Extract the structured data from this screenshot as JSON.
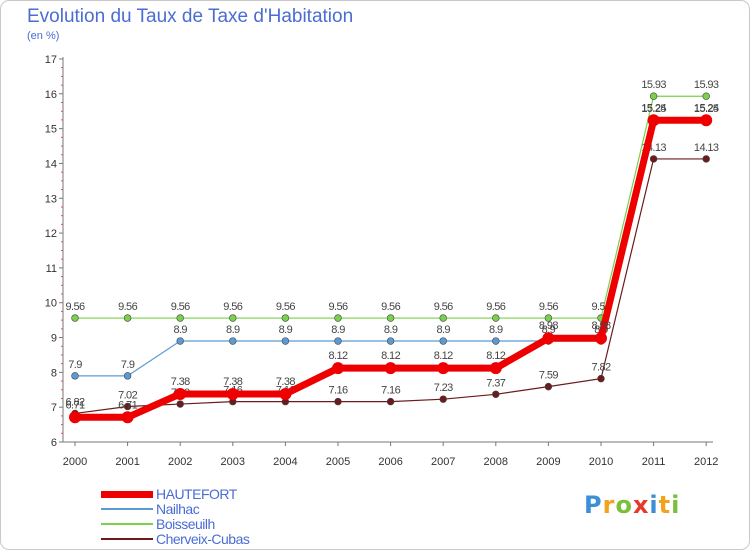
{
  "chart_data": {
    "type": "line",
    "title": "Evolution du Taux de Taxe d'Habitation",
    "subtitle": "(en %)",
    "xlabel": "",
    "ylabel": "",
    "categories": [
      "2000",
      "2001",
      "2002",
      "2003",
      "2004",
      "2005",
      "2006",
      "2007",
      "2008",
      "2009",
      "2010",
      "2011",
      "2012"
    ],
    "ylim": [
      6,
      17
    ],
    "yticks": [
      "6",
      "7",
      "8",
      "9",
      "10",
      "11",
      "12",
      "13",
      "14",
      "15",
      "16",
      "17"
    ],
    "grid": false,
    "legend_position": "bottom-left",
    "series": [
      {
        "name": "Boisseuilh",
        "color": "#7ad14a",
        "values": [
          9.56,
          9.56,
          9.56,
          9.56,
          9.56,
          9.56,
          9.56,
          9.56,
          9.56,
          9.56,
          9.56,
          15.93,
          15.93
        ],
        "labels": [
          "9.56",
          "9.56",
          "9.56",
          "9.56",
          "9.56",
          "9.56",
          "9.56",
          "9.56",
          "9.56",
          "9.56",
          "9.56",
          "15.93",
          "15.93"
        ]
      },
      {
        "name": "Nailhac",
        "color": "#5b9bd5",
        "values": [
          7.9,
          7.9,
          8.9,
          8.9,
          8.9,
          8.9,
          8.9,
          8.9,
          8.9,
          8.9,
          8.9,
          15.25,
          15.25
        ],
        "labels": [
          "7.9",
          "7.9",
          "8.9",
          "8.9",
          "8.9",
          "8.9",
          "8.9",
          "8.9",
          "8.9",
          "8.9",
          "8.9",
          "15.25",
          "15.25"
        ]
      },
      {
        "name": "Cherveix-Cubas",
        "color": "#6b1b1b",
        "values": [
          6.82,
          7.02,
          7.09,
          7.16,
          7.16,
          7.16,
          7.16,
          7.23,
          7.37,
          7.59,
          7.82,
          14.13,
          14.13
        ],
        "labels": [
          "6.82",
          "7.02",
          "7.09",
          "7.16",
          "7.16",
          "7.16",
          "7.16",
          "7.23",
          "7.37",
          "7.59",
          "7.82",
          "14.13",
          "14.13"
        ]
      },
      {
        "name": "HAUTEFORT",
        "color": "#ee0000",
        "values": [
          6.71,
          6.71,
          7.38,
          7.38,
          7.38,
          8.12,
          8.12,
          8.12,
          8.12,
          8.98,
          8.98,
          15.24,
          15.24
        ],
        "labels": [
          "6.71",
          "6.71",
          "7.38",
          "7.38",
          "7.38",
          "8.12",
          "8.12",
          "8.12",
          "8.12",
          "8.98",
          "8.98",
          "15.24",
          "15.24"
        ]
      }
    ]
  },
  "legend": {
    "items": [
      {
        "label": "HAUTEFORT",
        "color": "#ee0000",
        "thickness": "thick"
      },
      {
        "label": "Nailhac",
        "color": "#5b9bd5",
        "thickness": "thin"
      },
      {
        "label": "Boisseuilh",
        "color": "#7ad14a",
        "thickness": "thin"
      },
      {
        "label": "Cherveix-Cubas",
        "color": "#6b1b1b",
        "thickness": "thin"
      }
    ]
  },
  "brand": {
    "letters": [
      "P",
      "r",
      "o",
      "x",
      "i",
      "t",
      "i"
    ],
    "colors": [
      "#3a8fd8",
      "#f3a21b",
      "#7cbf3a",
      "#e83a2a",
      "#3a8fd8",
      "#f3a21b",
      "#7cbf3a"
    ]
  }
}
